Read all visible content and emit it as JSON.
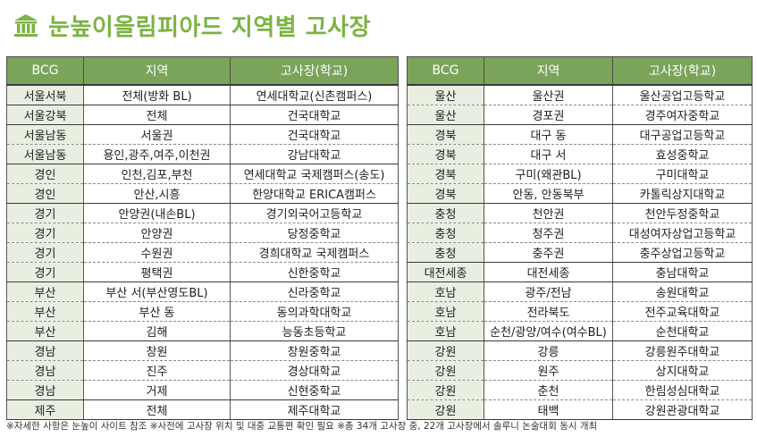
{
  "title": "눈높이올림피아드 지역별 고사장",
  "icon": "building-icon",
  "accent_color": "#7cb342",
  "header_color": "#7aa45a",
  "headers": {
    "bcg": "BCG",
    "region": "지역",
    "venue": "고사장(학교)"
  },
  "left_rows": [
    {
      "bcg": "서울서북",
      "region": "전체(방화 BL)",
      "venue": "연세대학교(신촌캠퍼스)"
    },
    {
      "bcg": "서울강북",
      "region": "전체",
      "venue": "건국대학교"
    },
    {
      "bcg": "서울남동",
      "region": "서울권",
      "venue": "건국대학교"
    },
    {
      "bcg": "서울남동",
      "region": "용인,광주,여주,이천권",
      "venue": "강남대학교"
    },
    {
      "bcg": "경인",
      "region": "인천,김포,부천",
      "venue": "연세대학교 국제캠퍼스(송도)"
    },
    {
      "bcg": "경인",
      "region": "안산,시흥",
      "venue": "한양대학교 ERICA캠퍼스"
    },
    {
      "bcg": "경기",
      "region": "안양권(내손BL)",
      "venue": "경기외국어고등학교"
    },
    {
      "bcg": "경기",
      "region": "안양권",
      "venue": "당정중학교"
    },
    {
      "bcg": "경기",
      "region": "수원권",
      "venue": "경희대학교 국제캠퍼스"
    },
    {
      "bcg": "경기",
      "region": "평택권",
      "venue": "신한중학교"
    },
    {
      "bcg": "부산",
      "region": "부산 서(부산영도BL)",
      "venue": "신라중학교"
    },
    {
      "bcg": "부산",
      "region": "부산 동",
      "venue": "동의과학대학교"
    },
    {
      "bcg": "부산",
      "region": "김해",
      "venue": "능동초등학교"
    },
    {
      "bcg": "경남",
      "region": "창원",
      "venue": "창원중학교"
    },
    {
      "bcg": "경남",
      "region": "진주",
      "venue": "경상대학교"
    },
    {
      "bcg": "경남",
      "region": "거제",
      "venue": "신현중학교"
    },
    {
      "bcg": "제주",
      "region": "전체",
      "venue": "제주대학교"
    }
  ],
  "right_rows": [
    {
      "bcg": "울산",
      "region": "울산권",
      "venue": "울산공업고등학교"
    },
    {
      "bcg": "울산",
      "region": "경포권",
      "venue": "경주여자중학교"
    },
    {
      "bcg": "경북",
      "region": "대구 동",
      "venue": "대구공업고등학교"
    },
    {
      "bcg": "경북",
      "region": "대구 서",
      "venue": "효성중학교"
    },
    {
      "bcg": "경북",
      "region": "구미(왜관BL)",
      "venue": "구미대학교"
    },
    {
      "bcg": "경북",
      "region": "안동, 안동북부",
      "venue": "카톨릭상지대학교"
    },
    {
      "bcg": "충청",
      "region": "천안권",
      "venue": "천안두정중학교"
    },
    {
      "bcg": "충청",
      "region": "청주권",
      "venue": "대성여자상업고등학교"
    },
    {
      "bcg": "충청",
      "region": "충주권",
      "venue": "충주상업고등학교"
    },
    {
      "bcg": "대전세종",
      "region": "대전세종",
      "venue": "충남대학교"
    },
    {
      "bcg": "호남",
      "region": "광주/전남",
      "venue": "송원대학교"
    },
    {
      "bcg": "호남",
      "region": "전라북도",
      "venue": "전주교육대학교"
    },
    {
      "bcg": "호남",
      "region": "순천/광양/여수(여수BL)",
      "venue": "순천대학교"
    },
    {
      "bcg": "강원",
      "region": "강릉",
      "venue": "강릉원주대학교"
    },
    {
      "bcg": "강원",
      "region": "원주",
      "venue": "상지대학교"
    },
    {
      "bcg": "강원",
      "region": "춘천",
      "venue": "한림성심대학교"
    },
    {
      "bcg": "강원",
      "region": "태백",
      "venue": "강원관광대학교"
    }
  ],
  "footnote": "※자세한 사항은 눈높이 사이트 참조   ※사전에 고사장 위치 및 대중 교통편 확인 필요   ※총 34개 고사장 중, 22개 고사장에서 솔루니 논술대회 동시 개최"
}
